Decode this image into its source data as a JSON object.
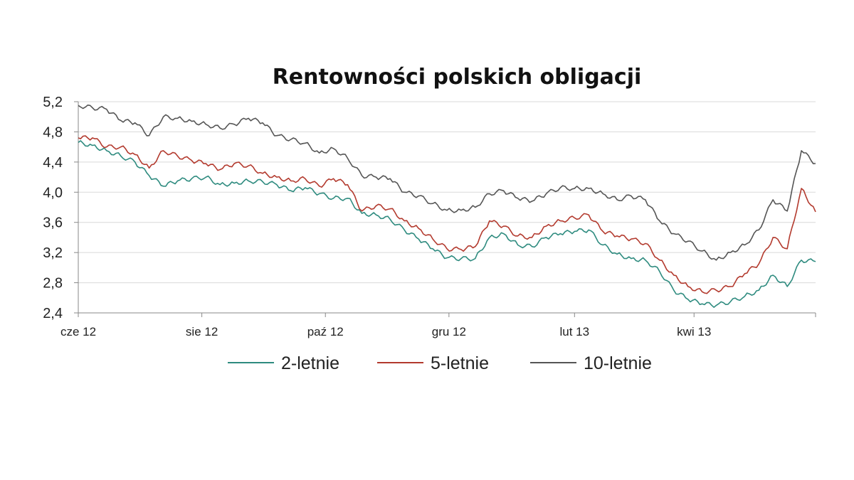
{
  "chart_data": {
    "type": "line",
    "title": "Rentowności polskich obligacji",
    "xlabel": "",
    "ylabel": "",
    "x_range": [
      "2012-06-01",
      "2013-05-31"
    ],
    "ylim": [
      2.4,
      5.2
    ],
    "yticks": [
      "5,2",
      "4,8",
      "4,4",
      "4,0",
      "3,6",
      "3,2",
      "2,8",
      "2,4"
    ],
    "ytick_values": [
      5.2,
      4.8,
      4.4,
      4.0,
      3.6,
      3.2,
      2.8,
      2.4
    ],
    "xticks": [
      {
        "label": "cze 12",
        "date": "2012-06-01"
      },
      {
        "label": "sie 12",
        "date": "2012-08-01"
      },
      {
        "label": "paź 12",
        "date": "2012-10-01"
      },
      {
        "label": "gru 12",
        "date": "2012-12-01"
      },
      {
        "label": "lut 13",
        "date": "2013-02-01"
      },
      {
        "label": "kwi 13",
        "date": "2013-04-01"
      }
    ],
    "grid": "horizontal",
    "legend_position": "bottom",
    "series": [
      {
        "name": "2-letnie",
        "color": "#2e8b7f",
        "points": [
          [
            "2012-06-01",
            4.66
          ],
          [
            "2012-06-08",
            4.62
          ],
          [
            "2012-06-15",
            4.55
          ],
          [
            "2012-06-22",
            4.48
          ],
          [
            "2012-06-29",
            4.4
          ],
          [
            "2012-07-06",
            4.22
          ],
          [
            "2012-07-13",
            4.08
          ],
          [
            "2012-07-20",
            4.15
          ],
          [
            "2012-07-27",
            4.18
          ],
          [
            "2012-08-03",
            4.2
          ],
          [
            "2012-08-10",
            4.1
          ],
          [
            "2012-08-17",
            4.12
          ],
          [
            "2012-08-24",
            4.15
          ],
          [
            "2012-08-31",
            4.14
          ],
          [
            "2012-09-07",
            4.1
          ],
          [
            "2012-09-14",
            4.02
          ],
          [
            "2012-09-21",
            4.06
          ],
          [
            "2012-09-28",
            3.98
          ],
          [
            "2012-10-05",
            3.92
          ],
          [
            "2012-10-12",
            3.92
          ],
          [
            "2012-10-19",
            3.72
          ],
          [
            "2012-10-26",
            3.7
          ],
          [
            "2012-11-02",
            3.64
          ],
          [
            "2012-11-09",
            3.5
          ],
          [
            "2012-11-16",
            3.38
          ],
          [
            "2012-11-23",
            3.25
          ],
          [
            "2012-11-30",
            3.13
          ],
          [
            "2012-12-07",
            3.12
          ],
          [
            "2012-12-14",
            3.12
          ],
          [
            "2012-12-21",
            3.4
          ],
          [
            "2012-12-28",
            3.45
          ],
          [
            "2013-01-04",
            3.3
          ],
          [
            "2013-01-11",
            3.28
          ],
          [
            "2013-01-18",
            3.4
          ],
          [
            "2013-01-25",
            3.45
          ],
          [
            "2013-02-01",
            3.48
          ],
          [
            "2013-02-08",
            3.5
          ],
          [
            "2013-02-15",
            3.3
          ],
          [
            "2013-02-22",
            3.18
          ],
          [
            "2013-03-01",
            3.12
          ],
          [
            "2013-03-08",
            3.1
          ],
          [
            "2013-03-15",
            2.95
          ],
          [
            "2013-03-22",
            2.7
          ],
          [
            "2013-03-29",
            2.58
          ],
          [
            "2013-04-05",
            2.52
          ],
          [
            "2013-04-12",
            2.5
          ],
          [
            "2013-04-19",
            2.55
          ],
          [
            "2013-04-26",
            2.62
          ],
          [
            "2013-05-03",
            2.7
          ],
          [
            "2013-05-10",
            2.9
          ],
          [
            "2013-05-17",
            2.75
          ],
          [
            "2013-05-24",
            3.1
          ],
          [
            "2013-05-31",
            3.08
          ]
        ]
      },
      {
        "name": "5-letnie",
        "color": "#b33a2e",
        "points": [
          [
            "2012-06-01",
            4.72
          ],
          [
            "2012-06-08",
            4.72
          ],
          [
            "2012-06-15",
            4.6
          ],
          [
            "2012-06-22",
            4.6
          ],
          [
            "2012-06-29",
            4.5
          ],
          [
            "2012-07-06",
            4.32
          ],
          [
            "2012-07-13",
            4.55
          ],
          [
            "2012-07-20",
            4.48
          ],
          [
            "2012-07-27",
            4.42
          ],
          [
            "2012-08-03",
            4.38
          ],
          [
            "2012-08-10",
            4.3
          ],
          [
            "2012-08-17",
            4.38
          ],
          [
            "2012-08-24",
            4.35
          ],
          [
            "2012-08-31",
            4.25
          ],
          [
            "2012-09-07",
            4.2
          ],
          [
            "2012-09-14",
            4.15
          ],
          [
            "2012-09-21",
            4.18
          ],
          [
            "2012-09-28",
            4.08
          ],
          [
            "2012-10-05",
            4.18
          ],
          [
            "2012-10-12",
            4.1
          ],
          [
            "2012-10-19",
            3.75
          ],
          [
            "2012-10-26",
            3.82
          ],
          [
            "2012-11-02",
            3.78
          ],
          [
            "2012-11-09",
            3.62
          ],
          [
            "2012-11-16",
            3.52
          ],
          [
            "2012-11-23",
            3.38
          ],
          [
            "2012-11-30",
            3.25
          ],
          [
            "2012-12-07",
            3.24
          ],
          [
            "2012-12-14",
            3.28
          ],
          [
            "2012-12-21",
            3.62
          ],
          [
            "2012-12-28",
            3.55
          ],
          [
            "2013-01-04",
            3.42
          ],
          [
            "2013-01-11",
            3.4
          ],
          [
            "2013-01-18",
            3.55
          ],
          [
            "2013-01-25",
            3.62
          ],
          [
            "2013-02-01",
            3.66
          ],
          [
            "2013-02-08",
            3.7
          ],
          [
            "2013-02-15",
            3.48
          ],
          [
            "2013-02-22",
            3.42
          ],
          [
            "2013-03-01",
            3.38
          ],
          [
            "2013-03-08",
            3.32
          ],
          [
            "2013-03-15",
            3.1
          ],
          [
            "2013-03-22",
            2.9
          ],
          [
            "2013-03-29",
            2.75
          ],
          [
            "2013-04-05",
            2.68
          ],
          [
            "2013-04-12",
            2.7
          ],
          [
            "2013-04-19",
            2.75
          ],
          [
            "2013-04-26",
            2.92
          ],
          [
            "2013-05-03",
            3.05
          ],
          [
            "2013-05-10",
            3.4
          ],
          [
            "2013-05-17",
            3.25
          ],
          [
            "2013-05-24",
            4.05
          ],
          [
            "2013-05-31",
            3.74
          ]
        ]
      },
      {
        "name": "10-letnie",
        "color": "#555555",
        "points": [
          [
            "2012-06-01",
            5.15
          ],
          [
            "2012-06-08",
            5.12
          ],
          [
            "2012-06-15",
            5.1
          ],
          [
            "2012-06-22",
            4.95
          ],
          [
            "2012-06-29",
            4.92
          ],
          [
            "2012-07-06",
            4.75
          ],
          [
            "2012-07-13",
            5.0
          ],
          [
            "2012-07-20",
            4.98
          ],
          [
            "2012-07-27",
            4.94
          ],
          [
            "2012-08-03",
            4.9
          ],
          [
            "2012-08-10",
            4.85
          ],
          [
            "2012-08-17",
            4.9
          ],
          [
            "2012-08-24",
            4.98
          ],
          [
            "2012-08-31",
            4.92
          ],
          [
            "2012-09-07",
            4.75
          ],
          [
            "2012-09-14",
            4.7
          ],
          [
            "2012-09-21",
            4.65
          ],
          [
            "2012-09-28",
            4.52
          ],
          [
            "2012-10-05",
            4.58
          ],
          [
            "2012-10-12",
            4.45
          ],
          [
            "2012-10-19",
            4.22
          ],
          [
            "2012-10-26",
            4.2
          ],
          [
            "2012-11-02",
            4.18
          ],
          [
            "2012-11-09",
            4.0
          ],
          [
            "2012-11-16",
            3.95
          ],
          [
            "2012-11-23",
            3.85
          ],
          [
            "2012-11-30",
            3.76
          ],
          [
            "2012-12-07",
            3.76
          ],
          [
            "2012-12-14",
            3.8
          ],
          [
            "2012-12-21",
            3.98
          ],
          [
            "2012-12-28",
            4.02
          ],
          [
            "2013-01-04",
            3.92
          ],
          [
            "2013-01-11",
            3.88
          ],
          [
            "2013-01-18",
            3.98
          ],
          [
            "2013-01-25",
            4.06
          ],
          [
            "2013-02-01",
            4.05
          ],
          [
            "2013-02-08",
            4.05
          ],
          [
            "2013-02-15",
            3.98
          ],
          [
            "2013-02-22",
            3.9
          ],
          [
            "2013-03-01",
            3.95
          ],
          [
            "2013-03-08",
            3.9
          ],
          [
            "2013-03-15",
            3.62
          ],
          [
            "2013-03-22",
            3.45
          ],
          [
            "2013-03-29",
            3.35
          ],
          [
            "2013-04-05",
            3.22
          ],
          [
            "2013-04-12",
            3.1
          ],
          [
            "2013-04-19",
            3.2
          ],
          [
            "2013-04-26",
            3.3
          ],
          [
            "2013-05-03",
            3.5
          ],
          [
            "2013-05-10",
            3.9
          ],
          [
            "2013-05-17",
            3.75
          ],
          [
            "2013-05-24",
            4.55
          ],
          [
            "2013-05-31",
            4.38
          ]
        ]
      }
    ]
  }
}
